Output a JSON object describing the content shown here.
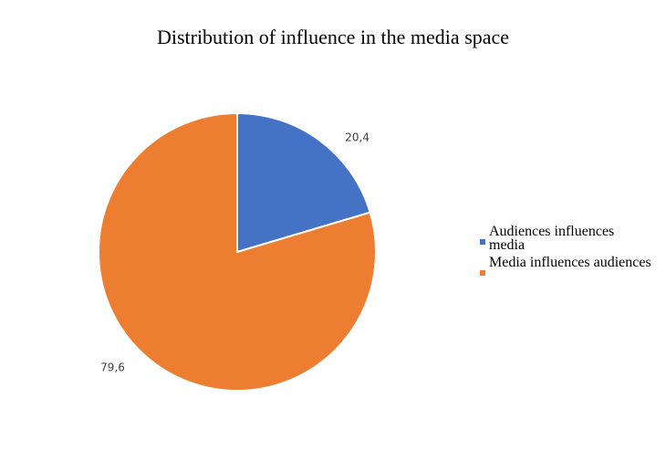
{
  "chart_data": {
    "type": "pie",
    "title": "Distribution of influence in the media space",
    "categories": [
      "Audiences influences media",
      "Media influences audiences"
    ],
    "values": [
      20.4,
      79.6
    ],
    "data_labels": [
      "20,4",
      "79,6"
    ],
    "colors": [
      "#4472C4",
      "#ED7D31"
    ],
    "start_angle": "12 o'clock",
    "direction": "clockwise",
    "legend_position": "right"
  }
}
